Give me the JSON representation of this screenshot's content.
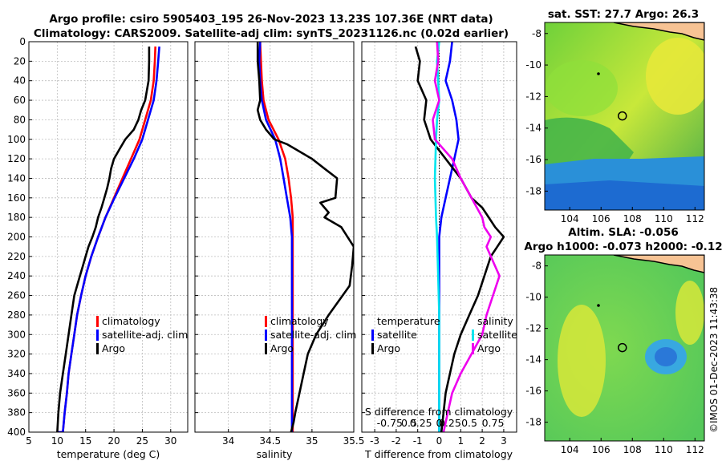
{
  "header": {
    "title_line1": "Argo profile: csiro 5905403_195 26-Nov-2023 13.23S 107.36E (NRT data)",
    "title_line2": "Climatology: CARS2009. Satellite-adj clim: synTS_20231126.nc (0.02d earlier)"
  },
  "credit": "©IMOS 01-Dec-2023 11:43:38",
  "colors": {
    "climatology": "#ff0000",
    "satellite": "#0000ff",
    "argo": "#000000",
    "sat_salinity": "#00e5ee",
    "argo_salinity": "#ee00ee",
    "land": "#f7c394"
  },
  "chart_data": [
    {
      "type": "line",
      "id": "temperature-panel",
      "xlabel": "temperature (deg C)",
      "ylabel": "",
      "xlim": [
        5,
        33
      ],
      "ylim": [
        400,
        0
      ],
      "xticks": [
        5,
        10,
        15,
        20,
        25,
        30
      ],
      "yticks": [
        0,
        20,
        40,
        60,
        80,
        100,
        120,
        140,
        160,
        180,
        200,
        220,
        240,
        260,
        280,
        300,
        320,
        340,
        360,
        380,
        400
      ],
      "grid": true,
      "legend": {
        "position": "bottom-right",
        "entries": [
          "climatology",
          "satellite-adj. clim",
          "Argo"
        ]
      },
      "series": [
        {
          "name": "climatology",
          "color": "#ff0000",
          "x": [
            27.3,
            27.2,
            27,
            26.5,
            25.5,
            24.5,
            23,
            21.5,
            20,
            18.5,
            17.2,
            16,
            15,
            14.2,
            13.5,
            13,
            12.5,
            12,
            11.7,
            11.3,
            11,
            10.8,
            10.6,
            10.4,
            10.2,
            10.05,
            9.9
          ],
          "y": [
            5,
            20,
            40,
            60,
            80,
            100,
            120,
            140,
            160,
            180,
            200,
            220,
            240,
            260,
            280,
            300,
            320,
            340,
            360,
            380,
            400,
            400,
            400,
            400,
            400,
            400,
            400
          ]
        },
        {
          "name": "satellite-adj. clim",
          "color": "#0000ff",
          "x": [
            28,
            27.8,
            27.5,
            27,
            26,
            25,
            23.5,
            21.8,
            20.1,
            18.5,
            17.2,
            16,
            15,
            14.2,
            13.5,
            13,
            12.5,
            12,
            11.7,
            11.3,
            11,
            10.8,
            10.6,
            10.4,
            10.2,
            10.05,
            9.9
          ],
          "y": [
            5,
            20,
            40,
            60,
            80,
            100,
            120,
            140,
            160,
            180,
            200,
            220,
            240,
            260,
            280,
            300,
            320,
            340,
            360,
            380,
            400,
            400,
            400,
            400,
            400,
            400,
            400
          ]
        },
        {
          "name": "Argo",
          "color": "#000000",
          "x": [
            26.2,
            26.2,
            26.1,
            25.5,
            24.8,
            24.3,
            23.5,
            22,
            21,
            20,
            19.5,
            19.2,
            18.8,
            18.3,
            17.8,
            17.2,
            16.8,
            16.2,
            15.5,
            15,
            14.5,
            14,
            13.5,
            13,
            12.5,
            12,
            11.5,
            11,
            10.5,
            10.2,
            10
          ],
          "y": [
            5,
            20,
            40,
            60,
            70,
            80,
            90,
            100,
            110,
            120,
            130,
            140,
            150,
            160,
            170,
            180,
            190,
            200,
            210,
            220,
            230,
            240,
            250,
            260,
            280,
            300,
            320,
            340,
            360,
            380,
            400
          ]
        }
      ]
    },
    {
      "type": "line",
      "id": "salinity-panel",
      "xlabel": "salinity",
      "ylabel": "",
      "xlim": [
        33.6,
        35.5
      ],
      "ylim": [
        400,
        0
      ],
      "xticks": [
        34,
        34.5,
        35,
        35.5
      ],
      "yticks": [
        0,
        20,
        40,
        60,
        80,
        100,
        120,
        140,
        160,
        180,
        200,
        220,
        240,
        260,
        280,
        300,
        320,
        340,
        360,
        380,
        400
      ],
      "grid": true,
      "legend": {
        "position": "bottom-right",
        "entries": [
          "climatology",
          "satellite-adj. clim",
          "Argo"
        ]
      },
      "series": [
        {
          "name": "climatology",
          "color": "#ff0000",
          "x": [
            34.38,
            34.39,
            34.4,
            34.42,
            34.48,
            34.6,
            34.68,
            34.72,
            34.75,
            34.77,
            34.77,
            34.77,
            34.77,
            34.77,
            34.77,
            34.77,
            34.77,
            34.77
          ],
          "y": [
            0,
            20,
            40,
            60,
            80,
            100,
            120,
            140,
            160,
            180,
            200,
            240,
            280,
            300,
            320,
            340,
            380,
            400
          ]
        },
        {
          "name": "satellite-adj. clim",
          "color": "#0000ff",
          "x": [
            34.38,
            34.37,
            34.38,
            34.4,
            34.45,
            34.56,
            34.62,
            34.66,
            34.7,
            34.74,
            34.76,
            34.76,
            34.76,
            34.76,
            34.76,
            34.76,
            34.76,
            34.76
          ],
          "y": [
            0,
            20,
            40,
            60,
            80,
            100,
            120,
            140,
            160,
            180,
            200,
            240,
            280,
            300,
            320,
            340,
            380,
            400
          ]
        },
        {
          "name": "Argo",
          "color": "#000000",
          "x": [
            34.35,
            34.35,
            34.37,
            34.38,
            34.35,
            34.38,
            34.45,
            34.55,
            34.7,
            34.8,
            34.9,
            35.0,
            35.15,
            35.3,
            35.28,
            35.1,
            35.2,
            35.15,
            35.35,
            35.5,
            35.48,
            35.45,
            35.2,
            35.05,
            34.95,
            34.9,
            34.85,
            34.8,
            34.78,
            34.75
          ],
          "y": [
            0,
            20,
            40,
            60,
            70,
            80,
            90,
            100,
            105,
            110,
            115,
            120,
            130,
            140,
            160,
            165,
            175,
            180,
            190,
            210,
            230,
            250,
            280,
            300,
            320,
            340,
            360,
            380,
            390,
            400
          ]
        }
      ]
    },
    {
      "type": "line",
      "id": "difference-panel",
      "xlabel": "T difference from climatology",
      "xlabel_top": "S difference from climatology",
      "secondary_ticks": [
        "-0.75",
        "0.5",
        "0.25",
        "0",
        "0.25",
        "0.5",
        "0.75"
      ],
      "ylabel": "",
      "xlim": [
        -3.6,
        3.6
      ],
      "ylim": [
        400,
        0
      ],
      "xticks": [
        -3,
        -2,
        -1,
        0,
        1,
        2,
        3
      ],
      "yticks": [
        0,
        20,
        40,
        60,
        80,
        100,
        120,
        140,
        160,
        180,
        200,
        220,
        240,
        260,
        280,
        300,
        320,
        340,
        360,
        380,
        400
      ],
      "grid": true,
      "legend": {
        "position": "bottom",
        "entries": [
          "temperature",
          "satellite",
          "Argo",
          "salinity",
          "satellite",
          "Argo"
        ]
      },
      "series": [
        {
          "name": "T satellite",
          "color": "#0000ff",
          "x": [
            0.6,
            0.5,
            0.3,
            0.6,
            0.8,
            0.9,
            0.7,
            0.5,
            0.3,
            0.1,
            0.0,
            0.0,
            0.0,
            0.0,
            0.0,
            0.0,
            0.0
          ],
          "y": [
            0,
            20,
            40,
            60,
            80,
            100,
            120,
            140,
            160,
            180,
            200,
            240,
            280,
            300,
            340,
            380,
            400
          ]
        },
        {
          "name": "T Argo",
          "color": "#000000",
          "x": [
            -1.1,
            -0.9,
            -1.0,
            -0.6,
            -0.7,
            -0.4,
            0.3,
            1.0,
            1.5,
            2.0,
            2.3,
            2.6,
            3.0,
            2.7,
            2.4,
            2.1,
            1.8,
            1.4,
            1.0,
            0.7,
            0.5,
            0.3,
            0.2,
            0.1
          ],
          "y": [
            5,
            20,
            40,
            60,
            80,
            100,
            120,
            140,
            160,
            170,
            180,
            190,
            200,
            210,
            220,
            240,
            260,
            280,
            300,
            320,
            340,
            360,
            380,
            400
          ]
        },
        {
          "name": "S satellite",
          "color": "#00e5ee",
          "x": [
            0,
            -0.1,
            -0.05,
            0.0,
            -0.1,
            -0.15,
            -0.2,
            -0.15,
            -0.1,
            -0.05,
            0.0,
            0.0,
            0.0,
            0.0,
            0.0,
            0.0
          ],
          "y": [
            0,
            20,
            40,
            60,
            80,
            100,
            140,
            180,
            200,
            240,
            280,
            300,
            340,
            360,
            380,
            400
          ]
        },
        {
          "name": "S Argo",
          "color": "#ee00ee",
          "x": [
            -0.1,
            -0.05,
            -0.2,
            0.0,
            -0.3,
            -0.2,
            0.6,
            1.0,
            1.5,
            2.0,
            2.1,
            2.4,
            2.2,
            2.6,
            2.8,
            2.5,
            2.2,
            2.0,
            1.5,
            1.0,
            0.6,
            0.4,
            0.2
          ],
          "y": [
            0,
            20,
            40,
            60,
            80,
            100,
            120,
            140,
            160,
            180,
            190,
            200,
            210,
            230,
            240,
            260,
            280,
            300,
            320,
            340,
            360,
            380,
            400
          ]
        }
      ]
    },
    {
      "type": "heatmap",
      "id": "sst-map",
      "title": "sat. SST: 27.7 Argo: 26.3",
      "xticks": [
        104,
        106,
        108,
        110,
        112
      ],
      "yticks": [
        -8,
        -10,
        -12,
        -14,
        -16,
        -18
      ],
      "xlim": [
        102.4,
        112.6
      ],
      "ylim": [
        -19.2,
        -7.3
      ],
      "argo_marker": {
        "lon": 107.36,
        "lat": -13.23
      }
    },
    {
      "type": "heatmap",
      "id": "sla-map",
      "title_line1": "Altim. SLA: -0.056",
      "title_line2": "Argo h1000: -0.073 h2000: -0.12",
      "xticks": [
        104,
        106,
        108,
        110,
        112
      ],
      "yticks": [
        -8,
        -10,
        -12,
        -14,
        -16,
        -18
      ],
      "xlim": [
        102.4,
        112.6
      ],
      "ylim": [
        -19.2,
        -7.3
      ],
      "argo_marker": {
        "lon": 107.36,
        "lat": -13.23
      }
    }
  ]
}
